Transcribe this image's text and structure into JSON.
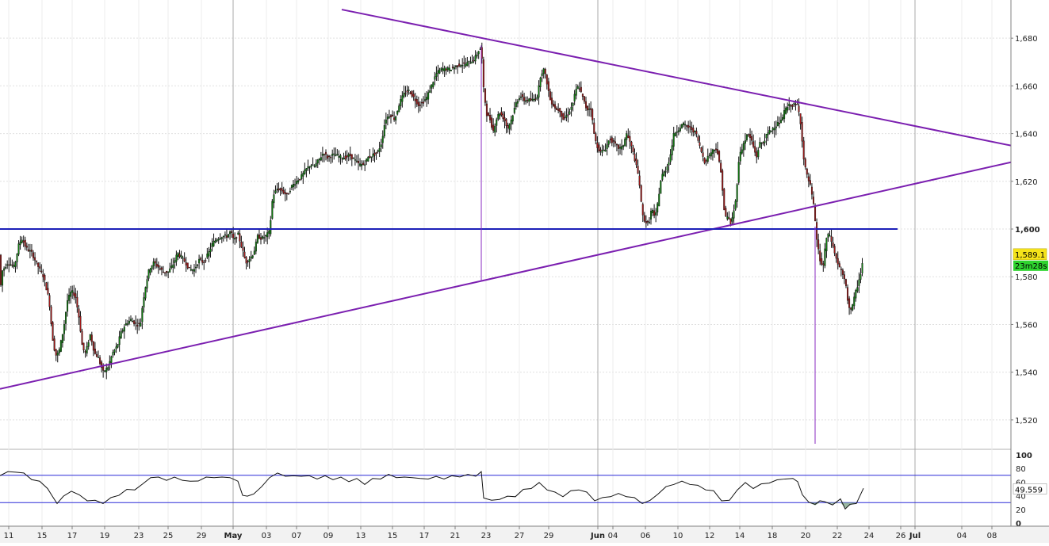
{
  "chart_data": [
    {
      "type": "candlestick",
      "title": "",
      "ylim": [
        1508,
        1696
      ],
      "y_ticks": [
        1520,
        1540,
        1560,
        1580,
        1600,
        1620,
        1640,
        1660,
        1680
      ],
      "y_tick_labels": [
        "1,520",
        "1,540",
        "1,560",
        "1,580",
        "1,600",
        "1,620",
        "1,640",
        "1,660",
        "1,680"
      ],
      "y_tick_bold": [
        false,
        false,
        false,
        false,
        true,
        false,
        false,
        false,
        false
      ],
      "x_tick_labels": [
        "11",
        "15",
        "17",
        "19",
        "23",
        "25",
        "29",
        "May",
        "03",
        "07",
        "09",
        "13",
        "15",
        "17",
        "21",
        "23",
        "27",
        "29",
        "Jun",
        "04",
        "06",
        "10",
        "12",
        "14",
        "18",
        "20",
        "22",
        "24",
        "26",
        "Jul",
        "04",
        "08"
      ],
      "month_separators": [
        "May",
        "Jun",
        "Jul"
      ],
      "grid": true,
      "price_path": [
        [
          0,
          1571
        ],
        [
          2,
          1582
        ],
        [
          10,
          1586
        ],
        [
          18,
          1584
        ],
        [
          24,
          1594
        ],
        [
          28,
          1596
        ],
        [
          33,
          1592
        ],
        [
          40,
          1590
        ],
        [
          47,
          1585
        ],
        [
          55,
          1580
        ],
        [
          62,
          1570
        ],
        [
          66,
          1555
        ],
        [
          70,
          1547
        ],
        [
          74,
          1548
        ],
        [
          80,
          1558
        ],
        [
          85,
          1570
        ],
        [
          90,
          1574
        ],
        [
          95,
          1572
        ],
        [
          100,
          1562
        ],
        [
          104,
          1550
        ],
        [
          108,
          1548
        ],
        [
          114,
          1556
        ],
        [
          119,
          1548
        ],
        [
          124,
          1546
        ],
        [
          130,
          1540
        ],
        [
          136,
          1542
        ],
        [
          142,
          1548
        ],
        [
          148,
          1551
        ],
        [
          152,
          1556
        ],
        [
          158,
          1560
        ],
        [
          165,
          1562
        ],
        [
          172,
          1560
        ],
        [
          177,
          1560
        ],
        [
          180,
          1569
        ],
        [
          184,
          1577
        ],
        [
          188,
          1583
        ],
        [
          194,
          1586
        ],
        [
          200,
          1584
        ],
        [
          206,
          1582
        ],
        [
          212,
          1582
        ],
        [
          218,
          1585
        ],
        [
          224,
          1590
        ],
        [
          229,
          1588
        ],
        [
          234,
          1586
        ],
        [
          239,
          1583
        ],
        [
          245,
          1583
        ],
        [
          251,
          1587
        ],
        [
          257,
          1586
        ],
        [
          263,
          1590
        ],
        [
          268,
          1594
        ],
        [
          274,
          1596
        ],
        [
          280,
          1597
        ],
        [
          286,
          1597
        ],
        [
          291,
          1599
        ],
        [
          295,
          1595
        ],
        [
          300,
          1598
        ],
        [
          306,
          1591
        ],
        [
          310,
          1586
        ],
        [
          316,
          1588
        ],
        [
          320,
          1590
        ],
        [
          325,
          1597
        ],
        [
          330,
          1596
        ],
        [
          335,
          1597
        ],
        [
          340,
          1599
        ],
        [
          344,
          1614
        ],
        [
          350,
          1617
        ],
        [
          356,
          1616
        ],
        [
          362,
          1614
        ],
        [
          368,
          1618
        ],
        [
          374,
          1620
        ],
        [
          380,
          1622
        ],
        [
          386,
          1625
        ],
        [
          392,
          1627
        ],
        [
          396,
          1626
        ],
        [
          402,
          1629
        ],
        [
          408,
          1632
        ],
        [
          413,
          1630
        ],
        [
          418,
          1631
        ],
        [
          424,
          1631
        ],
        [
          430,
          1630
        ],
        [
          436,
          1630
        ],
        [
          441,
          1631
        ],
        [
          447,
          1629
        ],
        [
          453,
          1627
        ],
        [
          459,
          1627
        ],
        [
          464,
          1630
        ],
        [
          470,
          1631
        ],
        [
          476,
          1632
        ],
        [
          481,
          1636
        ],
        [
          486,
          1646
        ],
        [
          492,
          1648
        ],
        [
          498,
          1646
        ],
        [
          504,
          1653
        ],
        [
          510,
          1657
        ],
        [
          516,
          1658
        ],
        [
          522,
          1655
        ],
        [
          528,
          1652
        ],
        [
          533,
          1653
        ],
        [
          538,
          1655
        ],
        [
          544,
          1660
        ],
        [
          550,
          1665
        ],
        [
          556,
          1667
        ],
        [
          562,
          1667
        ],
        [
          568,
          1667
        ],
        [
          574,
          1668
        ],
        [
          580,
          1669
        ],
        [
          586,
          1669
        ],
        [
          592,
          1670
        ],
        [
          598,
          1671
        ],
        [
          604,
          1675
        ],
        [
          607,
          1676
        ],
        [
          610,
          1658
        ],
        [
          614,
          1648
        ],
        [
          618,
          1646
        ],
        [
          622,
          1641
        ],
        [
          626,
          1646
        ],
        [
          630,
          1649
        ],
        [
          636,
          1646
        ],
        [
          640,
          1642
        ],
        [
          645,
          1646
        ],
        [
          651,
          1653
        ],
        [
          656,
          1656
        ],
        [
          661,
          1654
        ],
        [
          667,
          1654
        ],
        [
          672,
          1654
        ],
        [
          678,
          1656
        ],
        [
          682,
          1665
        ],
        [
          686,
          1667
        ],
        [
          690,
          1661
        ],
        [
          694,
          1654
        ],
        [
          698,
          1652
        ],
        [
          702,
          1650
        ],
        [
          706,
          1650
        ],
        [
          710,
          1646
        ],
        [
          716,
          1648
        ],
        [
          722,
          1652
        ],
        [
          726,
          1658
        ],
        [
          730,
          1660
        ],
        [
          736,
          1654
        ],
        [
          740,
          1650
        ],
        [
          745,
          1651
        ],
        [
          750,
          1638
        ],
        [
          754,
          1634
        ],
        [
          758,
          1632
        ],
        [
          764,
          1634
        ],
        [
          769,
          1638
        ],
        [
          774,
          1636
        ],
        [
          780,
          1634
        ],
        [
          785,
          1634
        ],
        [
          790,
          1640
        ],
        [
          795,
          1636
        ],
        [
          800,
          1630
        ],
        [
          806,
          1621
        ],
        [
          810,
          1606
        ],
        [
          814,
          1603
        ],
        [
          818,
          1602
        ],
        [
          822,
          1609
        ],
        [
          826,
          1604
        ],
        [
          830,
          1612
        ],
        [
          834,
          1622
        ],
        [
          840,
          1625
        ],
        [
          845,
          1630
        ],
        [
          850,
          1640
        ],
        [
          856,
          1642
        ],
        [
          861,
          1644
        ],
        [
          866,
          1643
        ],
        [
          872,
          1642
        ],
        [
          878,
          1640
        ],
        [
          883,
          1634
        ],
        [
          889,
          1628
        ],
        [
          894,
          1631
        ],
        [
          899,
          1633
        ],
        [
          904,
          1634
        ],
        [
          910,
          1622
        ],
        [
          914,
          1605
        ],
        [
          918,
          1605
        ],
        [
          922,
          1602
        ],
        [
          928,
          1612
        ],
        [
          932,
          1630
        ],
        [
          938,
          1636
        ],
        [
          943,
          1640
        ],
        [
          948,
          1637
        ],
        [
          954,
          1630
        ],
        [
          958,
          1636
        ],
        [
          962,
          1636
        ],
        [
          968,
          1640
        ],
        [
          974,
          1642
        ],
        [
          980,
          1644
        ],
        [
          985,
          1645
        ],
        [
          990,
          1650
        ],
        [
          996,
          1652
        ],
        [
          1002,
          1652
        ],
        [
          1006,
          1652
        ],
        [
          1010,
          1644
        ],
        [
          1014,
          1628
        ],
        [
          1018,
          1622
        ],
        [
          1022,
          1618
        ],
        [
          1026,
          1610
        ],
        [
          1030,
          1596
        ],
        [
          1034,
          1587
        ],
        [
          1038,
          1584
        ],
        [
          1042,
          1596
        ],
        [
          1046,
          1598
        ],
        [
          1051,
          1592
        ],
        [
          1056,
          1586
        ],
        [
          1060,
          1583
        ],
        [
          1066,
          1578
        ],
        [
          1070,
          1568
        ],
        [
          1074,
          1566
        ],
        [
          1078,
          1572
        ],
        [
          1082,
          1577
        ],
        [
          1086,
          1582
        ],
        [
          1089,
          1589.1
        ]
      ],
      "current_price_label": "1,589.1",
      "countdown_label": "23m28s",
      "trendlines": [
        {
          "name": "upper-resistance",
          "from": [
            431,
            1692
          ],
          "to": [
            1275,
            1635
          ],
          "color": "#7b1fb0"
        },
        {
          "name": "lower-support",
          "from": [
            0,
            1533
          ],
          "to": [
            1275,
            1628
          ],
          "color": "#7b1fb0"
        },
        {
          "name": "horizontal-level",
          "from": [
            0,
            1600
          ],
          "to": [
            1132,
            1600
          ],
          "color": "#1c1fb8"
        },
        {
          "name": "vertical-marker-1",
          "from": [
            607,
            1677
          ],
          "to": [
            607,
            1578
          ],
          "color": "#8a2bc0"
        },
        {
          "name": "vertical-marker-2",
          "from": [
            1028,
            1601
          ],
          "to": [
            1028,
            1510
          ],
          "color": "#8a2bc0"
        }
      ],
      "colors": {
        "up": "#0b7a0b",
        "down": "#a01818",
        "axis_bg": "#f2f2f2",
        "grid": "#e0e0e0"
      }
    },
    {
      "type": "line",
      "title": "",
      "ylim": [
        0,
        100
      ],
      "y_ticks": [
        0,
        20,
        40,
        60,
        80,
        100
      ],
      "y_tick_labels": [
        "0",
        "20",
        "40",
        "60",
        "80",
        "100"
      ],
      "reference_lines": [
        70,
        30
      ],
      "current_value_label": "49.559",
      "oscillator_path": [
        [
          0,
          71
        ],
        [
          10,
          74
        ],
        [
          20,
          76
        ],
        [
          30,
          72
        ],
        [
          40,
          65
        ],
        [
          50,
          60
        ],
        [
          60,
          52
        ],
        [
          66,
          38
        ],
        [
          72,
          30
        ],
        [
          80,
          38
        ],
        [
          90,
          48
        ],
        [
          100,
          40
        ],
        [
          110,
          34
        ],
        [
          120,
          32
        ],
        [
          130,
          30
        ],
        [
          140,
          36
        ],
        [
          150,
          42
        ],
        [
          160,
          48
        ],
        [
          170,
          50
        ],
        [
          180,
          56
        ],
        [
          190,
          68
        ],
        [
          200,
          66
        ],
        [
          210,
          64
        ],
        [
          220,
          66
        ],
        [
          230,
          64
        ],
        [
          240,
          60
        ],
        [
          250,
          63
        ],
        [
          260,
          66
        ],
        [
          270,
          68
        ],
        [
          280,
          66
        ],
        [
          290,
          68
        ],
        [
          300,
          60
        ],
        [
          306,
          42
        ],
        [
          312,
          38
        ],
        [
          320,
          44
        ],
        [
          330,
          52
        ],
        [
          340,
          68
        ],
        [
          350,
          72
        ],
        [
          360,
          70
        ],
        [
          370,
          68
        ],
        [
          380,
          70
        ],
        [
          390,
          68
        ],
        [
          400,
          66
        ],
        [
          410,
          68
        ],
        [
          420,
          65
        ],
        [
          430,
          66
        ],
        [
          440,
          62
        ],
        [
          450,
          64
        ],
        [
          460,
          58
        ],
        [
          470,
          64
        ],
        [
          480,
          66
        ],
        [
          490,
          70
        ],
        [
          500,
          68
        ],
        [
          510,
          66
        ],
        [
          520,
          68
        ],
        [
          530,
          64
        ],
        [
          540,
          66
        ],
        [
          550,
          67
        ],
        [
          560,
          66
        ],
        [
          570,
          68
        ],
        [
          580,
          69
        ],
        [
          590,
          70
        ],
        [
          600,
          70
        ],
        [
          607,
          74
        ],
        [
          610,
          38
        ],
        [
          620,
          32
        ],
        [
          630,
          36
        ],
        [
          640,
          38
        ],
        [
          650,
          40
        ],
        [
          660,
          48
        ],
        [
          670,
          52
        ],
        [
          680,
          58
        ],
        [
          690,
          50
        ],
        [
          700,
          44
        ],
        [
          710,
          40
        ],
        [
          720,
          46
        ],
        [
          730,
          50
        ],
        [
          740,
          44
        ],
        [
          750,
          34
        ],
        [
          760,
          36
        ],
        [
          770,
          40
        ],
        [
          780,
          42
        ],
        [
          790,
          40
        ],
        [
          800,
          36
        ],
        [
          810,
          30
        ],
        [
          820,
          32
        ],
        [
          830,
          44
        ],
        [
          840,
          52
        ],
        [
          850,
          58
        ],
        [
          860,
          60
        ],
        [
          870,
          58
        ],
        [
          880,
          54
        ],
        [
          890,
          50
        ],
        [
          900,
          46
        ],
        [
          910,
          34
        ],
        [
          920,
          32
        ],
        [
          930,
          50
        ],
        [
          940,
          58
        ],
        [
          950,
          52
        ],
        [
          960,
          56
        ],
        [
          970,
          60
        ],
        [
          980,
          62
        ],
        [
          990,
          66
        ],
        [
          1000,
          64
        ],
        [
          1006,
          62
        ],
        [
          1012,
          40
        ],
        [
          1020,
          32
        ],
        [
          1028,
          26
        ],
        [
          1034,
          34
        ],
        [
          1040,
          30
        ],
        [
          1050,
          28
        ],
        [
          1060,
          34
        ],
        [
          1066,
          22
        ],
        [
          1072,
          26
        ],
        [
          1080,
          30
        ],
        [
          1089,
          49.559
        ]
      ],
      "colors": {
        "line": "#111111",
        "band": "#2a2ad8",
        "fill": "#6f9a7a"
      }
    }
  ]
}
